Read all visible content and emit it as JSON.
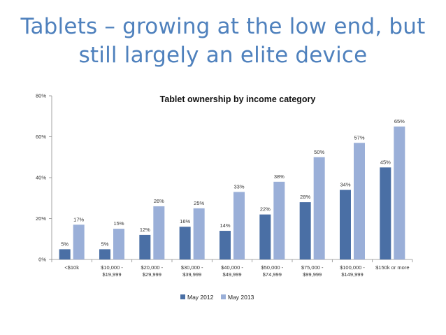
{
  "slide": {
    "title_line1": "Tablets – growing at the low end, but",
    "title_line2": "still largely an elite device"
  },
  "colors": {
    "title": "#4F81BD",
    "series_2012": "#4A6FA5",
    "series_2013": "#9AAFD8"
  },
  "chart_data": {
    "type": "bar",
    "title": "Tablet ownership by income category",
    "categories": [
      [
        "<$10k"
      ],
      [
        "$10,000 -",
        "$19,999"
      ],
      [
        "$20,000 -",
        "$29,999"
      ],
      [
        "$30,000 -",
        "$39,999"
      ],
      [
        "$40,000 -",
        "$49,999"
      ],
      [
        "$50,000 -",
        "$74,999"
      ],
      [
        "$75,000 -",
        "$99,999"
      ],
      [
        "$100,000 -",
        "$149,999"
      ],
      [
        "$150k or more"
      ]
    ],
    "series": [
      {
        "name": "May 2012",
        "values": [
          5,
          5,
          12,
          16,
          14,
          22,
          28,
          34,
          45
        ]
      },
      {
        "name": "May 2013",
        "values": [
          17,
          15,
          26,
          25,
          33,
          38,
          50,
          57,
          65
        ]
      }
    ],
    "yticks": [
      0,
      20,
      40,
      60,
      80
    ],
    "ylim": [
      0,
      80
    ],
    "value_suffix": "%",
    "xlabel": "",
    "ylabel": "",
    "legend_position": "bottom"
  }
}
